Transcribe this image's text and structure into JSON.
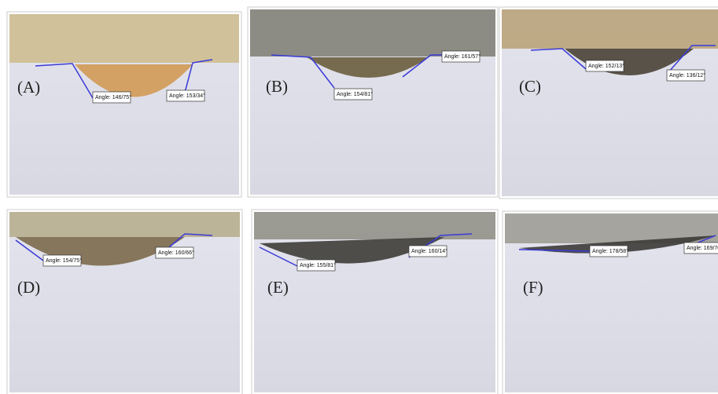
{
  "panels": [
    {
      "label": "(A)",
      "angles": [
        "Angle: 146/75°",
        "Angle: 153/34°"
      ]
    },
    {
      "label": "(B)",
      "angles": [
        "Angle: 154/81°",
        "Angle: 161/57°"
      ]
    },
    {
      "label": "(C)",
      "angles": [
        "Angle: 152/13°",
        "Angle: 136/12°"
      ]
    },
    {
      "label": "(D)",
      "angles": [
        "Angle: 154/75°",
        "Angle: 160/66°"
      ]
    },
    {
      "label": "(E)",
      "angles": [
        "Angle: 155/81°",
        "Angle: 160/14°"
      ]
    },
    {
      "label": "(F)",
      "angles": [
        "Angle: 178/58°",
        "Angle: 169/70°"
      ]
    }
  ]
}
